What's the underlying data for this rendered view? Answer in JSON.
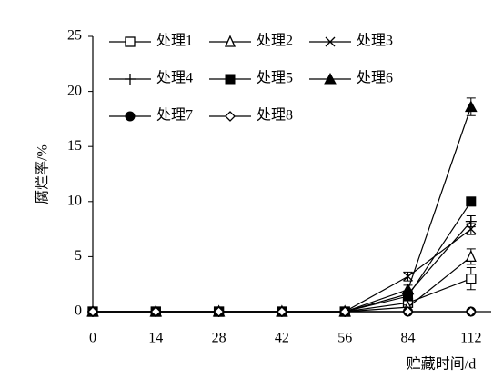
{
  "chart_data": {
    "type": "line",
    "x_label": "贮藏时间/d",
    "y_label": "腐烂率/%",
    "categories": [
      "0",
      "14",
      "28",
      "42",
      "56",
      "84",
      "112"
    ],
    "ylim": [
      0,
      25
    ],
    "yticks": [
      0,
      5,
      10,
      15,
      20,
      25
    ],
    "series": [
      {
        "name": "处理1",
        "color": "#000000",
        "marker": "square-open",
        "values": [
          0,
          0,
          0,
          0,
          0,
          0.8,
          3.0
        ],
        "errors": [
          0,
          0,
          0,
          0,
          0,
          0.3,
          1.0
        ]
      },
      {
        "name": "处理2",
        "color": "#000000",
        "marker": "triangle-open",
        "values": [
          0,
          0,
          0,
          0,
          0,
          0.4,
          5.0
        ],
        "errors": [
          0,
          0,
          0,
          0,
          0,
          0.2,
          0.7
        ]
      },
      {
        "name": "处理3",
        "color": "#000000",
        "marker": "x",
        "values": [
          0,
          0,
          0,
          0,
          0,
          3.2,
          7.5
        ],
        "errors": [
          0,
          0,
          0,
          0,
          0,
          0.4,
          0.5
        ]
      },
      {
        "name": "处理4",
        "color": "#000000",
        "marker": "plus",
        "values": [
          0,
          0,
          0,
          0,
          0,
          1.6,
          8.2
        ],
        "errors": [
          0,
          0,
          0,
          0,
          0,
          0.3,
          0.5
        ]
      },
      {
        "name": "处理5",
        "color": "#000000",
        "marker": "square-filled",
        "values": [
          0,
          0,
          0,
          0,
          0,
          1.4,
          10.0
        ],
        "errors": [
          0,
          0,
          0,
          0,
          0,
          0.3,
          0.4
        ]
      },
      {
        "name": "处理6",
        "color": "#000000",
        "marker": "triangle-filled",
        "values": [
          0,
          0,
          0,
          0,
          0,
          2.0,
          18.6
        ],
        "errors": [
          0,
          0,
          0,
          0,
          0,
          0.4,
          0.8
        ]
      },
      {
        "name": "处理7",
        "color": "#000000",
        "marker": "circle-filled",
        "values": [
          0,
          0,
          0,
          0,
          0,
          0,
          0
        ],
        "errors": [
          0,
          0,
          0,
          0,
          0,
          0,
          0
        ]
      },
      {
        "name": "处理8",
        "color": "#000000",
        "marker": "diamond-open",
        "values": [
          0,
          0,
          0,
          0,
          0,
          0,
          0
        ],
        "errors": [
          0,
          0,
          0,
          0,
          0,
          0,
          0
        ]
      }
    ]
  }
}
